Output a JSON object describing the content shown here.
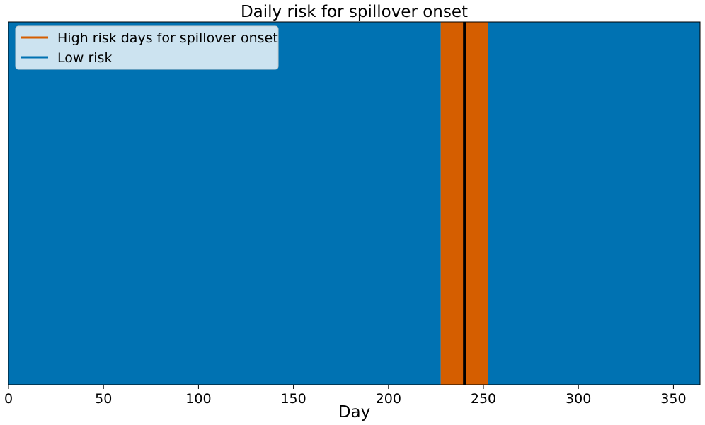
{
  "chart_data": {
    "type": "area",
    "title": "Daily risk for spillover onset",
    "xlabel": "Day",
    "ylabel": "",
    "xlim": [
      0,
      364
    ],
    "xticks": [
      0,
      50,
      100,
      150,
      200,
      250,
      300,
      350
    ],
    "y_ticks_visible": false,
    "legend_position": "upper-left",
    "series": [
      {
        "name": "High risk days for spillover onset",
        "color": "#D55E00",
        "intervals": [
          [
            227.5,
            252.5
          ]
        ]
      },
      {
        "name": "Low risk",
        "color": "#0072B2",
        "intervals": [
          [
            0,
            227.5
          ],
          [
            252.5,
            364
          ]
        ]
      }
    ],
    "vertical_lines": [
      {
        "x": 240,
        "color": "#000000"
      }
    ]
  }
}
